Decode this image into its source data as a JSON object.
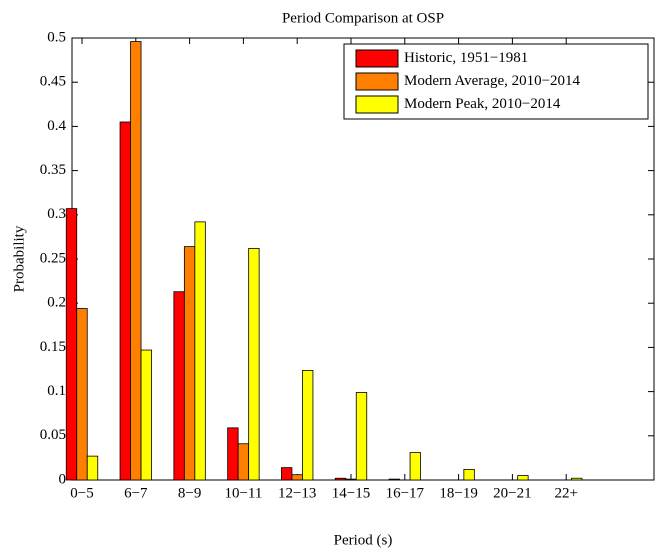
{
  "chart_data": {
    "type": "bar",
    "title": "Period Comparison at OSP",
    "x_label": "Period (s)",
    "y_label": "Probability",
    "categories": [
      "0−5",
      "6−7",
      "8−9",
      "10−11",
      "12−13",
      "14−15",
      "16−17",
      "18−19",
      "20−21",
      "22+"
    ],
    "series": [
      {
        "name": "Historic, 1951−1981",
        "color": "#ff0000",
        "values": [
          0.307,
          0.405,
          0.213,
          0.059,
          0.014,
          0.002,
          0.001,
          0,
          0,
          0
        ]
      },
      {
        "name": "Modern Average, 2010−2014",
        "color": "#ff8000",
        "values": [
          0.194,
          0.496,
          0.264,
          0.041,
          0.006,
          0.001,
          0,
          0,
          0,
          0
        ]
      },
      {
        "name": "Modern Peak, 2010−2014",
        "color": "#ffff00",
        "values": [
          0.027,
          0.147,
          0.292,
          0.262,
          0.124,
          0.099,
          0.031,
          0.012,
          0.005,
          0.002
        ]
      }
    ],
    "ylim": [
      0,
      0.5
    ],
    "yticks": [
      0,
      0.05,
      0.1,
      0.15,
      0.2,
      0.25,
      0.3,
      0.35,
      0.4,
      0.45,
      0.5
    ],
    "legend": "upper right"
  }
}
